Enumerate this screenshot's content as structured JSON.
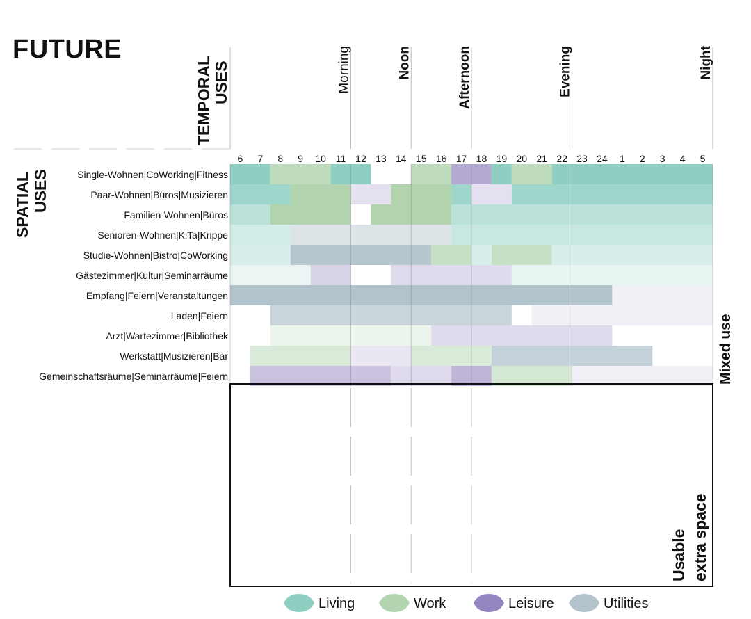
{
  "title": "FUTURE",
  "temporal_uses_label": [
    "TEMPORAL",
    "USES"
  ],
  "spatial_uses_label": [
    "SPATIAL",
    "USES"
  ],
  "day_periods": [
    {
      "label": "Morning",
      "bold": false,
      "hour_index": 6
    },
    {
      "label": "Noon",
      "bold": true,
      "hour_index": 9
    },
    {
      "label": "Afternoon",
      "bold": true,
      "hour_index": 12
    },
    {
      "label": "Evening",
      "bold": true,
      "hour_index": 17
    },
    {
      "label": "Night",
      "bold": true,
      "hour_index": 24
    }
  ],
  "mixed_use_label": "Mixed use",
  "extra_space_label": [
    "Usable",
    "extra space"
  ],
  "colors": {
    "Living": "#8ecfc2",
    "Work": "#b2d5b0",
    "Leisure": "#9484bf",
    "Utilities": "#b2c3cc"
  },
  "legend": [
    {
      "label": "Living",
      "category": "Living"
    },
    {
      "label": "Work",
      "category": "Work"
    },
    {
      "label": "Leisure",
      "category": "Leisure"
    },
    {
      "label": "Utilities",
      "category": "Utilities"
    }
  ],
  "chart_data": {
    "type": "gantt",
    "hours": [
      "6",
      "7",
      "8",
      "9",
      "10",
      "11",
      "12",
      "13",
      "14",
      "15",
      "16",
      "17",
      "18",
      "19",
      "20",
      "21",
      "22",
      "23",
      "24",
      "1",
      "2",
      "3",
      "4",
      "5"
    ],
    "rows": [
      {
        "label": "Single-Wohnen|CoWorking|Fitness",
        "segments": [
          {
            "start": 0,
            "end": 2,
            "category": "Living",
            "intensity": 1.0
          },
          {
            "start": 2,
            "end": 5,
            "category": "Work",
            "intensity": 0.85
          },
          {
            "start": 5,
            "end": 7,
            "category": "Living",
            "intensity": 1.0
          },
          {
            "start": 9,
            "end": 11,
            "category": "Work",
            "intensity": 0.85
          },
          {
            "start": 11,
            "end": 13,
            "category": "Leisure",
            "intensity": 0.7
          },
          {
            "start": 13,
            "end": 14,
            "category": "Living",
            "intensity": 1.0
          },
          {
            "start": 14,
            "end": 16,
            "category": "Work",
            "intensity": 0.85
          },
          {
            "start": 16,
            "end": 24,
            "category": "Living",
            "intensity": 1.0
          }
        ]
      },
      {
        "label": "Paar-Wohnen|Büros|Musizieren",
        "segments": [
          {
            "start": 0,
            "end": 3,
            "category": "Living",
            "intensity": 0.85
          },
          {
            "start": 3,
            "end": 6,
            "category": "Work",
            "intensity": 1.0
          },
          {
            "start": 6,
            "end": 8,
            "category": "Leisure",
            "intensity": 0.25
          },
          {
            "start": 8,
            "end": 11,
            "category": "Work",
            "intensity": 1.0
          },
          {
            "start": 11,
            "end": 12,
            "category": "Living",
            "intensity": 0.85
          },
          {
            "start": 12,
            "end": 14,
            "category": "Leisure",
            "intensity": 0.25
          },
          {
            "start": 14,
            "end": 24,
            "category": "Living",
            "intensity": 0.85
          }
        ]
      },
      {
        "label": "Familien-Wohnen|Büros",
        "segments": [
          {
            "start": 0,
            "end": 2,
            "category": "Living",
            "intensity": 0.6
          },
          {
            "start": 2,
            "end": 6,
            "category": "Work",
            "intensity": 1.0
          },
          {
            "start": 7,
            "end": 11,
            "category": "Work",
            "intensity": 1.0
          },
          {
            "start": 11,
            "end": 24,
            "category": "Living",
            "intensity": 0.6
          }
        ]
      },
      {
        "label": "Senioren-Wohnen|KiTa|Krippe",
        "segments": [
          {
            "start": 0,
            "end": 3,
            "category": "Living",
            "intensity": 0.4
          },
          {
            "start": 3,
            "end": 11,
            "category": "Utilities",
            "intensity": 0.45
          },
          {
            "start": 11,
            "end": 24,
            "category": "Living",
            "intensity": 0.5
          }
        ]
      },
      {
        "label": "Studie-Wohnen|Bistro|CoWorking",
        "segments": [
          {
            "start": 0,
            "end": 3,
            "category": "Living",
            "intensity": 0.35
          },
          {
            "start": 3,
            "end": 10,
            "category": "Utilities",
            "intensity": 0.95
          },
          {
            "start": 10,
            "end": 12,
            "category": "Work",
            "intensity": 0.75
          },
          {
            "start": 12,
            "end": 13,
            "category": "Living",
            "intensity": 0.35
          },
          {
            "start": 13,
            "end": 16,
            "category": "Work",
            "intensity": 0.75
          },
          {
            "start": 16,
            "end": 24,
            "category": "Living",
            "intensity": 0.35
          }
        ]
      },
      {
        "label": "Gästezimmer|Kultur|Seminarräume",
        "segments": [
          {
            "start": 0,
            "end": 4,
            "category": "Living",
            "intensity": 0.18
          },
          {
            "start": 4,
            "end": 6,
            "category": "Leisure",
            "intensity": 0.35
          },
          {
            "start": 8,
            "end": 14,
            "category": "Leisure",
            "intensity": 0.3
          },
          {
            "start": 14,
            "end": 24,
            "category": "Living",
            "intensity": 0.2
          }
        ]
      },
      {
        "label": "Empfang|Feiern|Veranstaltungen",
        "segments": [
          {
            "start": 0,
            "end": 19,
            "category": "Utilities",
            "intensity": 1.0
          },
          {
            "start": 19,
            "end": 24,
            "category": "Leisure",
            "intensity": 0.12
          }
        ]
      },
      {
        "label": "Laden|Feiern",
        "segments": [
          {
            "start": 2,
            "end": 14,
            "category": "Utilities",
            "intensity": 0.7
          },
          {
            "start": 15,
            "end": 24,
            "category": "Leisure",
            "intensity": 0.12
          }
        ]
      },
      {
        "label": "Arzt|Wartezimmer|Bibliothek",
        "segments": [
          {
            "start": 2,
            "end": 10,
            "category": "Work",
            "intensity": 0.25
          },
          {
            "start": 10,
            "end": 19,
            "category": "Leisure",
            "intensity": 0.3
          }
        ]
      },
      {
        "label": "Werkstatt|Musizieren|Bar",
        "segments": [
          {
            "start": 1,
            "end": 6,
            "category": "Work",
            "intensity": 0.5
          },
          {
            "start": 6,
            "end": 9,
            "category": "Leisure",
            "intensity": 0.2
          },
          {
            "start": 9,
            "end": 13,
            "category": "Work",
            "intensity": 0.5
          },
          {
            "start": 13,
            "end": 21,
            "category": "Utilities",
            "intensity": 0.75
          }
        ]
      },
      {
        "label": "Gemeinschaftsräume|Seminarräume|Feiern",
        "segments": [
          {
            "start": 1,
            "end": 8,
            "category": "Leisure",
            "intensity": 0.5
          },
          {
            "start": 8,
            "end": 11,
            "category": "Leisure",
            "intensity": 0.3
          },
          {
            "start": 11,
            "end": 13,
            "category": "Leisure",
            "intensity": 0.6
          },
          {
            "start": 13,
            "end": 17,
            "category": "Work",
            "intensity": 0.55
          },
          {
            "start": 17,
            "end": 24,
            "category": "Leisure",
            "intensity": 0.12
          }
        ]
      }
    ]
  }
}
